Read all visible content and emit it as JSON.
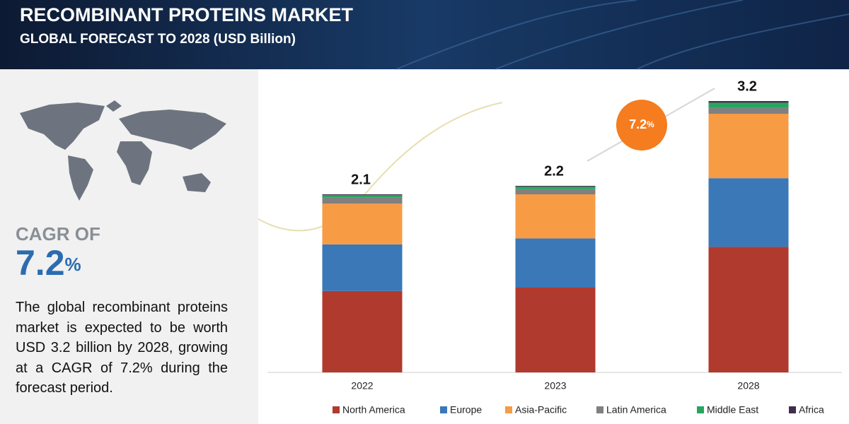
{
  "chart_data": {
    "type": "stacked_bar",
    "title": "RECOMBINANT PROTEINS MARKET",
    "subtitle": "GLOBAL FORECAST TO 2028 (USD Billion)",
    "cagr_label": "CAGR OF",
    "cagr_value": "7.2",
    "cagr_unit": "%",
    "description": "The global recombinant proteins market is expected to be worth USD 3.2 billion by 2028, growing at a CAGR of 7.2% during the forecast period.",
    "categories": [
      "2022",
      "2023",
      "2028"
    ],
    "totals": [
      2.1,
      2.2,
      3.2
    ],
    "series": [
      {
        "name": "North America",
        "color": "#b03a2e",
        "values": [
          0.96,
          1.0,
          1.48
        ]
      },
      {
        "name": "Europe",
        "color": "#3a78b8",
        "values": [
          0.55,
          0.58,
          0.81
        ]
      },
      {
        "name": "Asia-Pacific",
        "color": "#f79b45",
        "values": [
          0.48,
          0.52,
          0.76
        ]
      },
      {
        "name": "Latin America",
        "color": "#808080",
        "values": [
          0.07,
          0.06,
          0.07
        ]
      },
      {
        "name": "Middle East",
        "color": "#27a660",
        "values": [
          0.03,
          0.03,
          0.06
        ]
      },
      {
        "name": "Africa",
        "color": "#3f2e4a",
        "values": [
          0.01,
          0.01,
          0.02
        ]
      }
    ]
  }
}
